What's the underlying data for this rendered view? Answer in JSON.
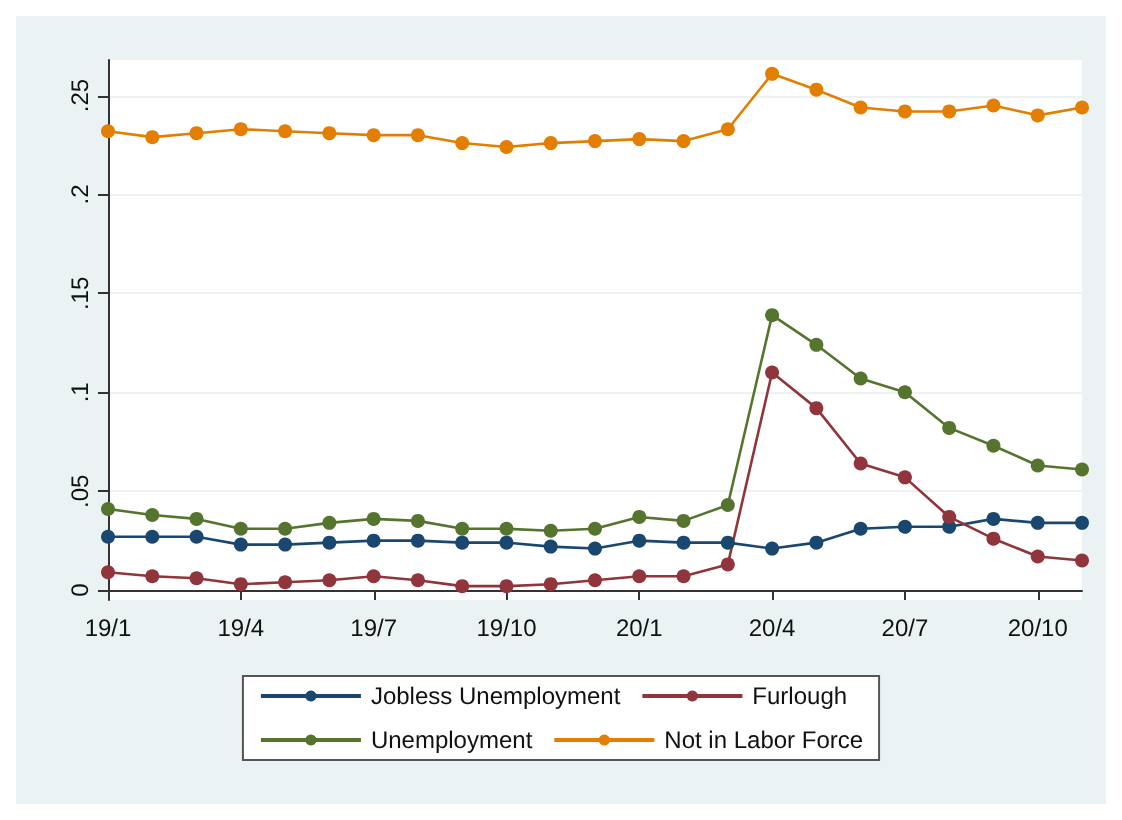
{
  "chart_data": {
    "type": "line",
    "categories": [
      "19/1",
      null,
      null,
      "19/4",
      null,
      null,
      "19/7",
      null,
      null,
      "19/10",
      null,
      null,
      "20/1",
      null,
      null,
      "20/4",
      null,
      null,
      "20/7",
      null,
      null,
      "20/10",
      null
    ],
    "series": [
      {
        "name": "Jobless Unemployment",
        "color": "#1a476f",
        "values": [
          0.027,
          0.027,
          0.027,
          0.023,
          0.023,
          0.024,
          0.025,
          0.025,
          0.024,
          0.024,
          0.022,
          0.021,
          0.025,
          0.024,
          0.024,
          0.021,
          0.024,
          0.031,
          0.032,
          0.032,
          0.036,
          0.034,
          0.034
        ]
      },
      {
        "name": "Furlough",
        "color": "#90353b",
        "values": [
          0.009,
          0.007,
          0.006,
          0.003,
          0.004,
          0.005,
          0.007,
          0.005,
          0.002,
          0.002,
          0.003,
          0.005,
          0.007,
          0.007,
          0.013,
          0.11,
          0.092,
          0.064,
          0.057,
          0.037,
          0.026,
          0.017,
          0.015
        ]
      },
      {
        "name": "Unemployment",
        "color": "#55752f",
        "values": [
          0.041,
          0.038,
          0.036,
          0.031,
          0.031,
          0.034,
          0.036,
          0.035,
          0.031,
          0.031,
          0.03,
          0.031,
          0.037,
          0.035,
          0.043,
          0.139,
          0.124,
          0.107,
          0.1,
          0.082,
          0.073,
          0.063,
          0.061
        ]
      },
      {
        "name": "Not in Labor Force",
        "color": "#e37e00",
        "values": [
          0.232,
          0.229,
          0.231,
          0.233,
          0.232,
          0.231,
          0.23,
          0.23,
          0.226,
          0.224,
          0.226,
          0.227,
          0.228,
          0.227,
          0.233,
          0.261,
          0.253,
          0.244,
          0.242,
          0.242,
          0.245,
          0.24,
          0.244
        ]
      }
    ],
    "ylim": [
      -0.005,
      0.268
    ],
    "yticks": [
      {
        "value": 0,
        "label": "0"
      },
      {
        "value": 0.05,
        "label": ".05"
      },
      {
        "value": 0.1,
        "label": ".1"
      },
      {
        "value": 0.15,
        "label": ".15"
      },
      {
        "value": 0.2,
        "label": ".2"
      },
      {
        "value": 0.25,
        "label": ".25"
      }
    ],
    "grid": "y",
    "legend": "bottom",
    "marker": "circle",
    "line_style": "solid"
  }
}
